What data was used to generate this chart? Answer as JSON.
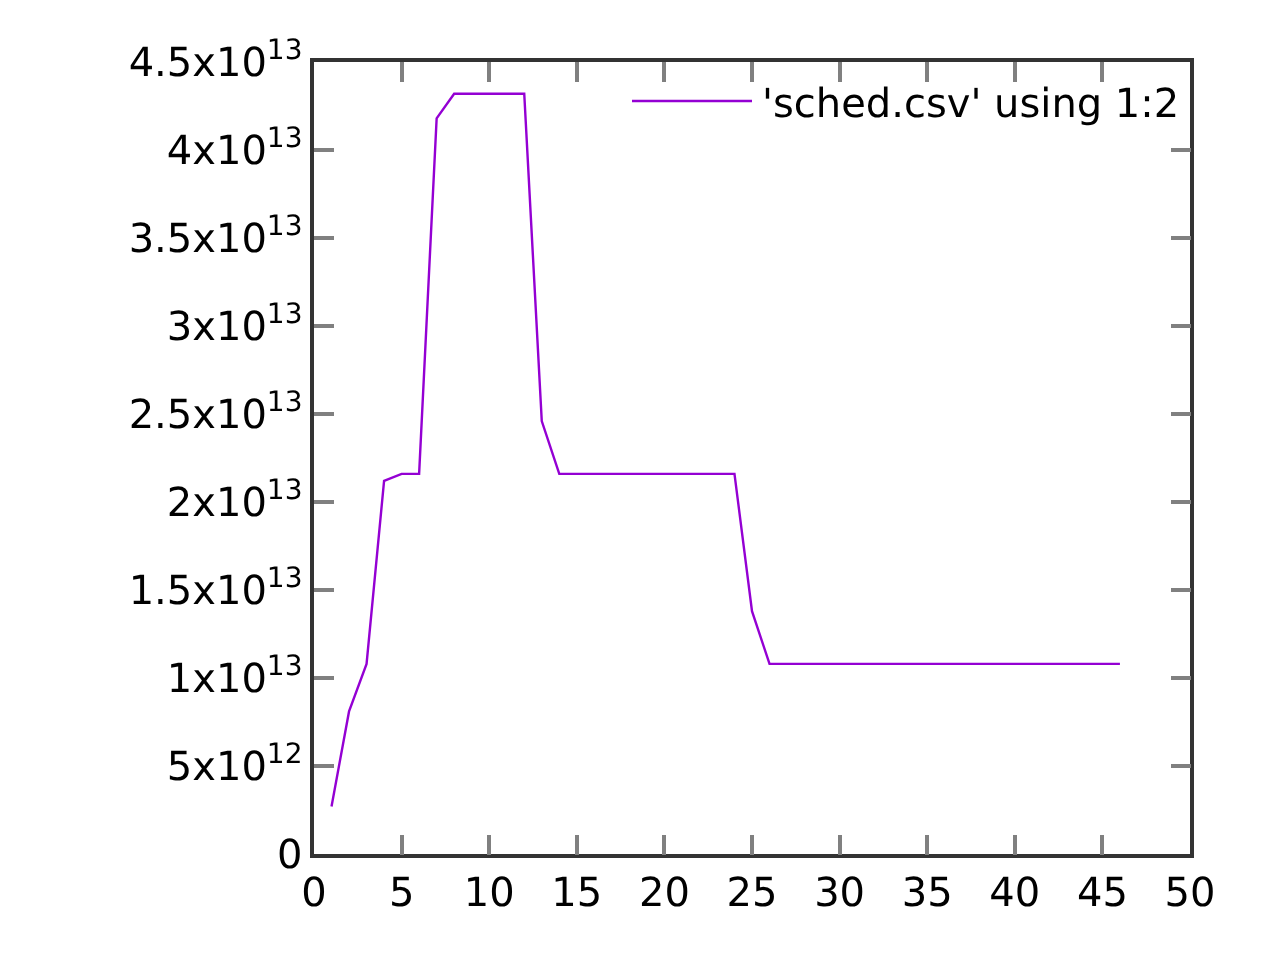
{
  "chart_data": {
    "type": "line",
    "x": [
      1,
      2,
      3,
      4,
      5,
      6,
      7,
      8,
      9,
      10,
      11,
      12,
      13,
      14,
      15,
      16,
      17,
      18,
      19,
      20,
      21,
      22,
      23,
      24,
      25,
      26,
      27,
      28,
      29,
      30,
      31,
      32,
      33,
      34,
      35,
      36,
      37,
      38,
      39,
      40,
      41,
      42,
      43,
      44,
      45,
      46
    ],
    "series": [
      {
        "name": "'sched.csv' using 1:2",
        "color": "#9400d3",
        "values": [
          2700000000000.0,
          8100000000000.0,
          10800000000000.0,
          21200000000000.0,
          21600000000000.0,
          21600000000000.0,
          41800000000000.0,
          43200000000000.0,
          43200000000000.0,
          43200000000000.0,
          43200000000000.0,
          43200000000000.0,
          24600000000000.0,
          21600000000000.0,
          21600000000000.0,
          21600000000000.0,
          21600000000000.0,
          21600000000000.0,
          21600000000000.0,
          21600000000000.0,
          21600000000000.0,
          21600000000000.0,
          21600000000000.0,
          21600000000000.0,
          13800000000000.0,
          10800000000000.0,
          10800000000000.0,
          10800000000000.0,
          10800000000000.0,
          10800000000000.0,
          10800000000000.0,
          10800000000000.0,
          10800000000000.0,
          10800000000000.0,
          10800000000000.0,
          10800000000000.0,
          10800000000000.0,
          10800000000000.0,
          10800000000000.0,
          10800000000000.0,
          10800000000000.0,
          10800000000000.0,
          10800000000000.0,
          10800000000000.0,
          10800000000000.0,
          10800000000000.0
        ]
      }
    ],
    "xlim": [
      0,
      50
    ],
    "xticks": [
      0,
      5,
      10,
      15,
      20,
      25,
      30,
      35,
      40,
      45,
      50
    ],
    "ylim": [
      0,
      45000000000000.0
    ],
    "yticks": [
      0,
      {
        "value": 5000000000000.0,
        "label": "5x10$^{12}$"
      },
      {
        "value": 10000000000000.0,
        "label": "1x10$^{13}$"
      },
      {
        "value": 15000000000000.0,
        "label": "1.5x10$^{13}$"
      },
      {
        "value": 20000000000000.0,
        "label": "2x10$^{13}$"
      },
      {
        "value": 25000000000000.0,
        "label": "2.5x10$^{13}$"
      },
      {
        "value": 30000000000000.0,
        "label": "3x10$^{13}$"
      },
      {
        "value": 35000000000000.0,
        "label": "3.5x10$^{13}$"
      },
      {
        "value": 40000000000000.0,
        "label": "4x10$^{13}$"
      },
      {
        "value": 45000000000000.0,
        "label": "4.5x10$^{13}$"
      }
    ],
    "grid": false,
    "legend": "top right",
    "marker": "none",
    "line_style": "solid"
  }
}
